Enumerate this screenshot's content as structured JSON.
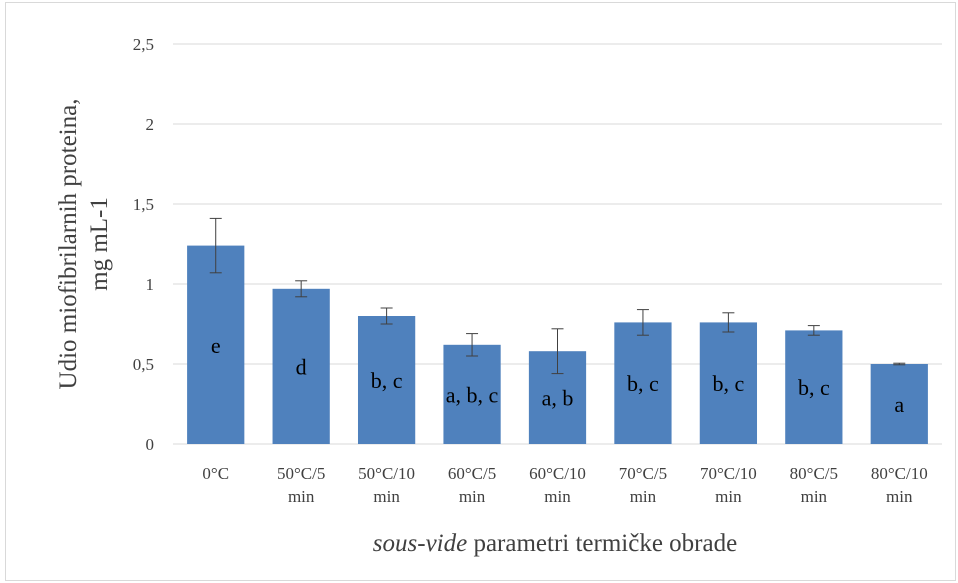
{
  "chart_data": {
    "type": "bar",
    "title": "",
    "ylabel_lines": [
      "Udio miofibrilarnih proteina,",
      "mg mL-1"
    ],
    "xlabel_italic": "sous-vide",
    "xlabel_rest": " parametri termičke obrade",
    "ylim": [
      0,
      2.5
    ],
    "yticks": [
      0,
      0.5,
      1,
      1.5,
      2,
      2.5
    ],
    "ytick_labels": [
      "0",
      "0,5",
      "1",
      "1,5",
      "2",
      "2,5"
    ],
    "grid": true,
    "categories": [
      [
        "0°C"
      ],
      [
        "50°C/5",
        "min"
      ],
      [
        "50°C/10",
        "min"
      ],
      [
        "60°C/5",
        "min"
      ],
      [
        "60°C/10",
        "min"
      ],
      [
        "70°C/5",
        "min"
      ],
      [
        "70°C/10",
        "min"
      ],
      [
        "80°C/5",
        "min"
      ],
      [
        "80°C/10",
        "min"
      ]
    ],
    "values": [
      1.24,
      0.97,
      0.8,
      0.62,
      0.58,
      0.76,
      0.76,
      0.71,
      0.5
    ],
    "errors": [
      0.17,
      0.05,
      0.05,
      0.07,
      0.14,
      0.08,
      0.06,
      0.03,
      0.005
    ],
    "bar_labels": [
      "e",
      "d",
      "b, c",
      "a, b, c",
      "a, b",
      "b, c",
      "b, c",
      "b, c",
      "a"
    ],
    "bar_color": "#4f81bd",
    "grid_color": "#d9d9d9",
    "text_color": "#404040"
  }
}
